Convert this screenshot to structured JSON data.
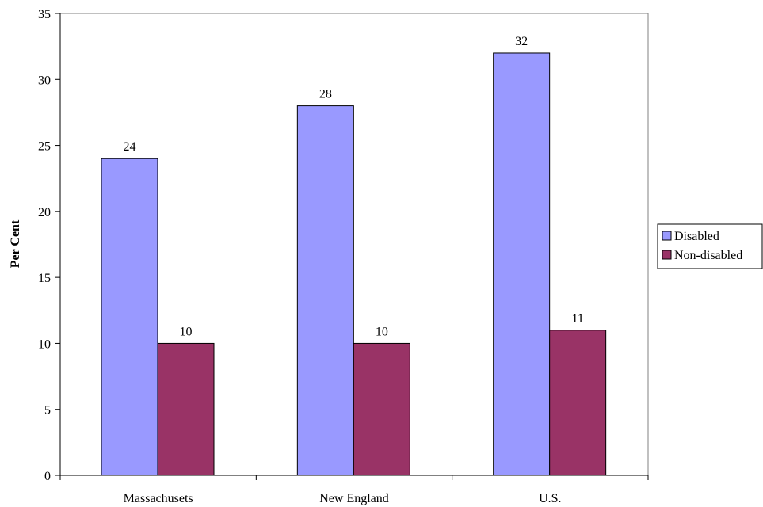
{
  "chart_data": {
    "type": "bar",
    "title": "",
    "xlabel": "",
    "ylabel": "Per Cent",
    "ylim": [
      0,
      35
    ],
    "yticks": [
      0,
      5,
      10,
      15,
      20,
      25,
      30,
      35
    ],
    "categories": [
      "Massachusets",
      "New England",
      "U.S."
    ],
    "series": [
      {
        "name": "Disabled",
        "values": [
          24,
          28,
          32
        ],
        "color": "#9999ff"
      },
      {
        "name": "Non-disabled",
        "values": [
          10,
          10,
          11
        ],
        "color": "#993366"
      }
    ],
    "data_labels": true,
    "grid": false,
    "legend_position": "right"
  }
}
